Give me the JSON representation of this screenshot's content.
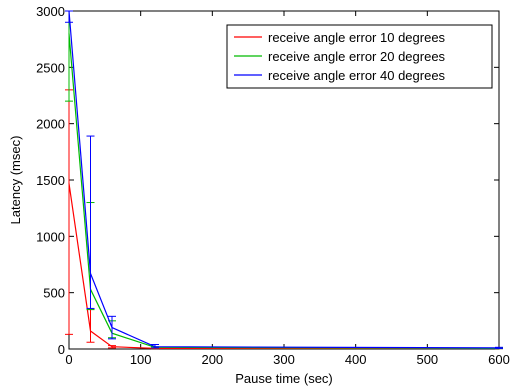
{
  "chart_data": {
    "type": "line",
    "xlabel": "Pause time (sec)",
    "ylabel": "Latency (msec)",
    "xlim": [
      0,
      600
    ],
    "ylim": [
      0,
      3000
    ],
    "xticks": [
      0,
      100,
      200,
      300,
      400,
      500,
      600
    ],
    "yticks": [
      0,
      500,
      1000,
      1500,
      2000,
      2500,
      3000
    ],
    "grid": false,
    "legend_position": "top-right",
    "x": [
      0,
      30,
      60,
      120,
      600
    ],
    "series": [
      {
        "name": "receive angle error 10 degrees",
        "color": "#ff0000",
        "values": [
          1470,
          160,
          20,
          5,
          5
        ],
        "err_low": [
          130,
          60,
          10,
          3,
          3
        ],
        "err_high": [
          2300,
          350,
          30,
          8,
          8
        ]
      },
      {
        "name": "receive angle error 20 degrees",
        "color": "#00bb00",
        "values": [
          2800,
          530,
          140,
          15,
          5
        ],
        "err_low": [
          2200,
          350,
          100,
          10,
          3
        ],
        "err_high": [
          3000,
          1300,
          250,
          20,
          8
        ]
      },
      {
        "name": "receive angle error 40 degrees",
        "color": "#0000ff",
        "values": [
          3000,
          670,
          190,
          20,
          10
        ],
        "err_low": [
          2900,
          360,
          90,
          10,
          5
        ],
        "err_high": [
          3000,
          1890,
          290,
          40,
          15
        ]
      }
    ]
  }
}
